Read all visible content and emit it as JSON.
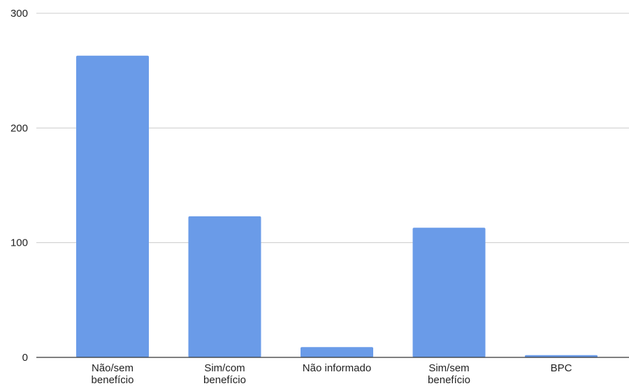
{
  "chart_data": {
    "type": "bar",
    "title": "",
    "xlabel": "",
    "ylabel": "",
    "categories": [
      [
        "Não/sem",
        "benefício"
      ],
      [
        "Sim/com",
        "benefício"
      ],
      [
        "Não informado"
      ],
      [
        "Sim/sem",
        "benefício"
      ],
      [
        "BPC"
      ]
    ],
    "values": [
      263,
      123,
      9,
      113,
      2
    ],
    "ylim": [
      0,
      300
    ],
    "yticks": [
      0,
      100,
      200,
      300
    ],
    "grid": true,
    "legend": "none",
    "colors": {
      "bar": "#6a9be8",
      "grid": "#cccccc",
      "axis": "#333333",
      "text": "#222222"
    }
  }
}
